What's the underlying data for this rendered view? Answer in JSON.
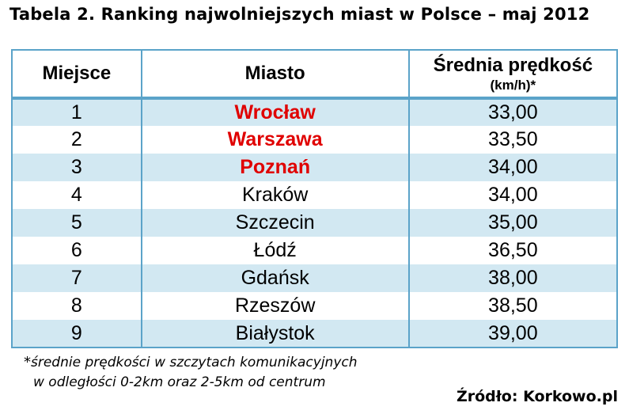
{
  "title": "Tabela 2. Ranking najwolniejszych miast w Polsce – maj 2012",
  "table": {
    "headers": {
      "rank": "Miejsce",
      "city": "Miasto",
      "speed": "Średnia prędkość",
      "speed_unit": "(km/h)*"
    },
    "rows": [
      {
        "rank": "1",
        "city": "Wrocław",
        "speed": "33,00",
        "highlight": true
      },
      {
        "rank": "2",
        "city": "Warszawa",
        "speed": "33,50",
        "highlight": true
      },
      {
        "rank": "3",
        "city": "Poznań",
        "speed": "34,00",
        "highlight": true
      },
      {
        "rank": "4",
        "city": "Kraków",
        "speed": "34,00",
        "highlight": false
      },
      {
        "rank": "5",
        "city": "Szczecin",
        "speed": "35,00",
        "highlight": false
      },
      {
        "rank": "6",
        "city": "Łódź",
        "speed": "36,50",
        "highlight": false
      },
      {
        "rank": "7",
        "city": "Gdańsk",
        "speed": "38,00",
        "highlight": false
      },
      {
        "rank": "8",
        "city": "Rzeszów",
        "speed": "38,50",
        "highlight": false
      },
      {
        "rank": "9",
        "city": "Białystok",
        "speed": "39,00",
        "highlight": false
      }
    ]
  },
  "footnote": {
    "marker": "*",
    "line1": "średnie prędkości w szczytach komunikacyjnych",
    "line2": "w odległości 0-2km oraz 2-5km od centrum"
  },
  "source": "Źródło: Korkowo.pl",
  "colors": {
    "border": "#5ba3c9",
    "stripe": "#d2e8f2",
    "highlight_text": "#e00000"
  }
}
